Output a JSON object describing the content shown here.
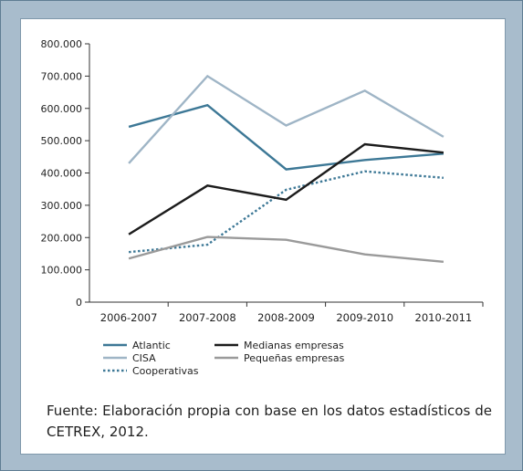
{
  "caption": "Fuente: Elaboración propia con base en los datos estadísticos de CETREX, 2012.",
  "chart_data": {
    "type": "line",
    "title": "",
    "xlabel": "",
    "ylabel": "",
    "categories": [
      "2006-2007",
      "2007-2008",
      "2008-2009",
      "2009-2010",
      "2010-2011"
    ],
    "y_ticks": [
      "0",
      "100.000",
      "200.000",
      "300.000",
      "400.000",
      "500.000",
      "600.000",
      "700.000",
      "800.000"
    ],
    "ylim": [
      0,
      800000
    ],
    "grid": false,
    "legend_position": "bottom",
    "series": [
      {
        "name": "Atlantic",
        "values": [
          543000,
          610000,
          411000,
          440000,
          460000
        ],
        "color": "#3d7896",
        "style": "solid"
      },
      {
        "name": "CISA",
        "values": [
          430000,
          700000,
          547000,
          655000,
          512000
        ],
        "color": "#9fb5c6",
        "style": "solid"
      },
      {
        "name": "Cooperativas",
        "values": [
          155000,
          178000,
          348000,
          405000,
          385000
        ],
        "color": "#3d7896",
        "style": "dotted"
      },
      {
        "name": "Medianas empresas",
        "values": [
          210000,
          361000,
          317000,
          489000,
          463000
        ],
        "color": "#1c1c1c",
        "style": "solid"
      },
      {
        "name": "Pequeñas empresas",
        "values": [
          135000,
          202000,
          193000,
          148000,
          125000
        ],
        "color": "#9a9a9a",
        "style": "solid"
      }
    ]
  }
}
